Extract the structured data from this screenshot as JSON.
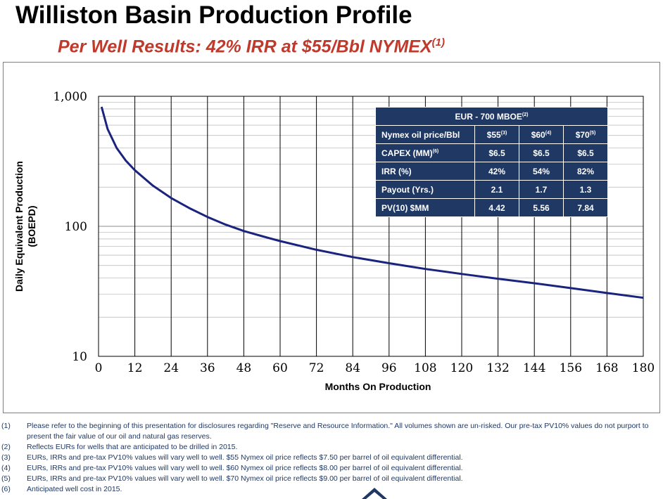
{
  "page": {
    "title": "Williston Basin Production Profile",
    "subtitle": "Per Well Results: 42% IRR at $55/Bbl NYMEX",
    "subtitle_note": "(1)"
  },
  "chart_data": {
    "type": "line",
    "xlabel": "Months On Production",
    "ylabel_line1": "Daily Equivalent Production",
    "ylabel_line2": "(BOEPD)",
    "x_ticks": [
      0,
      12,
      24,
      36,
      48,
      60,
      72,
      84,
      96,
      108,
      120,
      132,
      144,
      156,
      168,
      180
    ],
    "y_ticks": [
      10,
      100,
      1000
    ],
    "y_tick_labels": [
      "10",
      "100",
      "1,000"
    ],
    "xlim": [
      0,
      180
    ],
    "ylim": [
      10,
      1000
    ],
    "y_scale": "log",
    "grid": true,
    "series": [
      {
        "color": "#1a237e",
        "x": [
          1,
          3,
          6,
          9,
          12,
          18,
          24,
          30,
          36,
          42,
          48,
          54,
          60,
          72,
          84,
          96,
          108,
          120,
          132,
          144,
          156,
          168,
          180
        ],
        "y": [
          830,
          560,
          400,
          320,
          270,
          205,
          165,
          138,
          118,
          103,
          92,
          84,
          77,
          66,
          58,
          52,
          47,
          43,
          39.5,
          36.5,
          33.5,
          30.7,
          28.2
        ]
      }
    ]
  },
  "table": {
    "header": "EUR - 700 MBOE",
    "header_note": "(2)",
    "columns": [
      {
        "label": "Nymex oil price/Bbl",
        "note": ""
      },
      {
        "label": "$55",
        "note": "(3)"
      },
      {
        "label": "$60",
        "note": "(4)"
      },
      {
        "label": "$70",
        "note": "(5)"
      }
    ],
    "rows": [
      {
        "label": "CAPEX (MM)",
        "note": "(6)",
        "values": [
          "$6.5",
          "$6.5",
          "$6.5"
        ]
      },
      {
        "label": "IRR (%)",
        "note": "",
        "values": [
          "42%",
          "54%",
          "82%"
        ]
      },
      {
        "label": "Payout (Yrs.)",
        "note": "",
        "values": [
          "2.1",
          "1.7",
          "1.3"
        ]
      },
      {
        "label": "PV(10) $MM",
        "note": "",
        "values": [
          "4.42",
          "5.56",
          "7.84"
        ]
      }
    ]
  },
  "footnotes": [
    {
      "num": "(1)",
      "text": "Please refer to the beginning of this presentation for disclosures regarding \"Reserve and Resource Information.\"  All volumes shown are un-risked.  Our pre-tax PV10% values do not purport to present the fair value of our oil and natural gas reserves."
    },
    {
      "num": "(2)",
      "text": "Reflects EURs for wells that are anticipated to be drilled in 2015."
    },
    {
      "num": "(3)",
      "text": "EURs, IRRs and pre-tax PV10% values will vary well to well.  $55 Nymex oil price reflects $7.50 per barrel of oil equivalent differential."
    },
    {
      "num": "(4)",
      "text": "EURs, IRRs and pre-tax PV10% values will vary well to well.  $60 Nymex oil price reflects $8.00 per barrel of oil equivalent differential."
    },
    {
      "num": "(5)",
      "text": "EURs, IRRs and pre-tax PV10% values will vary well to well.  $70 Nymex oil price reflects $9.00 per barrel of oil equivalent differential."
    },
    {
      "num": "(6)",
      "text": "Anticipated well cost in 2015."
    }
  ]
}
